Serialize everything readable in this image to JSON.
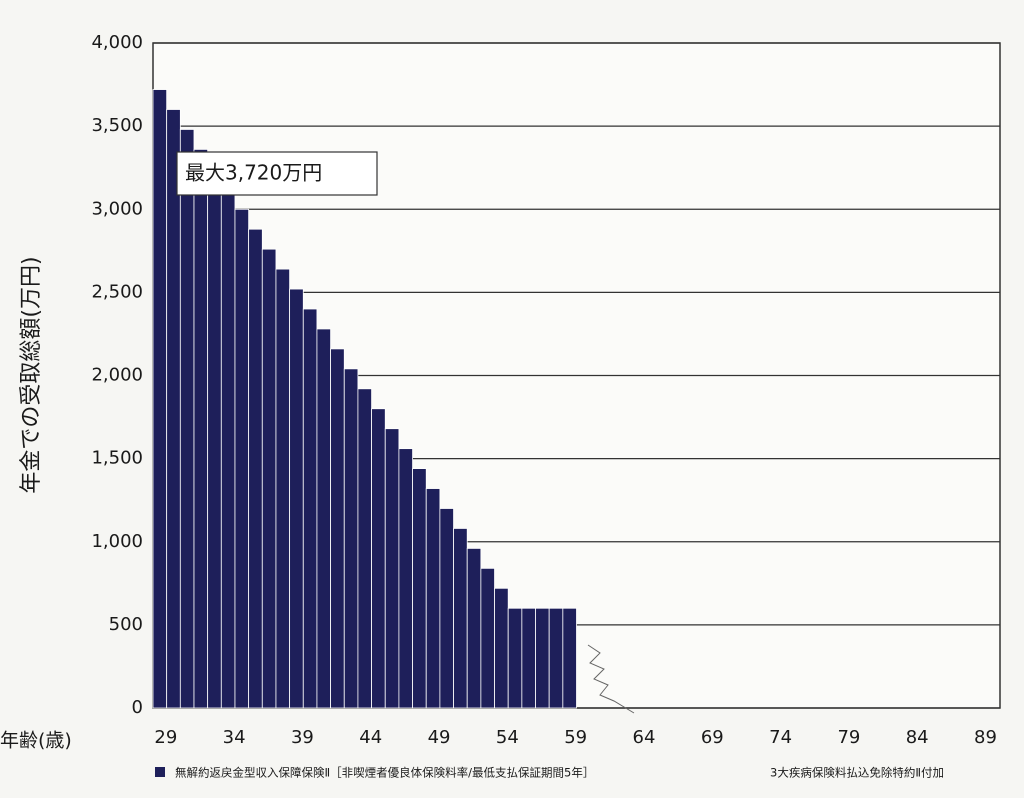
{
  "chart_data": {
    "type": "bar",
    "y_label": "年金での受取総額(万円)",
    "x_label": "年齢(歳)",
    "annotation": "最大3,720万円",
    "note": "3大疾病保険料払込免除特約Ⅱ付加",
    "categories": [
      29,
      null,
      null,
      null,
      null,
      34,
      null,
      null,
      null,
      null,
      39,
      null,
      null,
      null,
      null,
      44,
      null,
      null,
      null,
      null,
      49,
      null,
      null,
      null,
      null,
      54,
      null,
      null,
      null,
      null,
      59,
      null,
      null,
      null,
      null,
      64,
      null,
      null,
      null,
      null,
      69,
      null,
      null,
      null,
      null,
      74,
      null,
      null,
      null,
      null,
      79,
      null,
      null,
      null,
      null,
      84,
      null,
      null,
      null,
      null,
      89,
      null
    ],
    "series": [
      {
        "name": "無解約返戻金型収入保障保険Ⅱ［非喫煙者優良体保険料率/最低支払保証期間5年］",
        "color": "#1e1f5a",
        "values": [
          3720,
          3600,
          3480,
          3360,
          3240,
          3120,
          3000,
          2880,
          2760,
          2640,
          2520,
          2400,
          2280,
          2160,
          2040,
          1920,
          1800,
          1680,
          1560,
          1440,
          1320,
          1200,
          1080,
          960,
          840,
          720,
          600,
          600,
          600,
          600,
          600,
          0,
          0,
          0,
          0,
          0,
          0,
          0,
          0,
          0,
          0,
          0,
          0,
          0,
          0,
          0,
          0,
          0,
          0,
          0,
          0,
          0,
          0,
          0,
          0,
          0,
          0,
          0,
          0,
          0,
          0,
          0
        ]
      }
    ],
    "ylim": [
      0,
      4000
    ],
    "yticks": [
      0,
      500,
      {
        "value": 1000,
        "label": "1,000"
      },
      {
        "value": 1500,
        "label": "1,500"
      },
      {
        "value": 2000,
        "label": "2,000"
      },
      {
        "value": 2500,
        "label": "2,500"
      },
      {
        "value": 3000,
        "label": "3,000"
      },
      {
        "value": 3500,
        "label": "3,500"
      },
      {
        "value": 4000,
        "label": "4,000"
      }
    ],
    "grid": true
  }
}
